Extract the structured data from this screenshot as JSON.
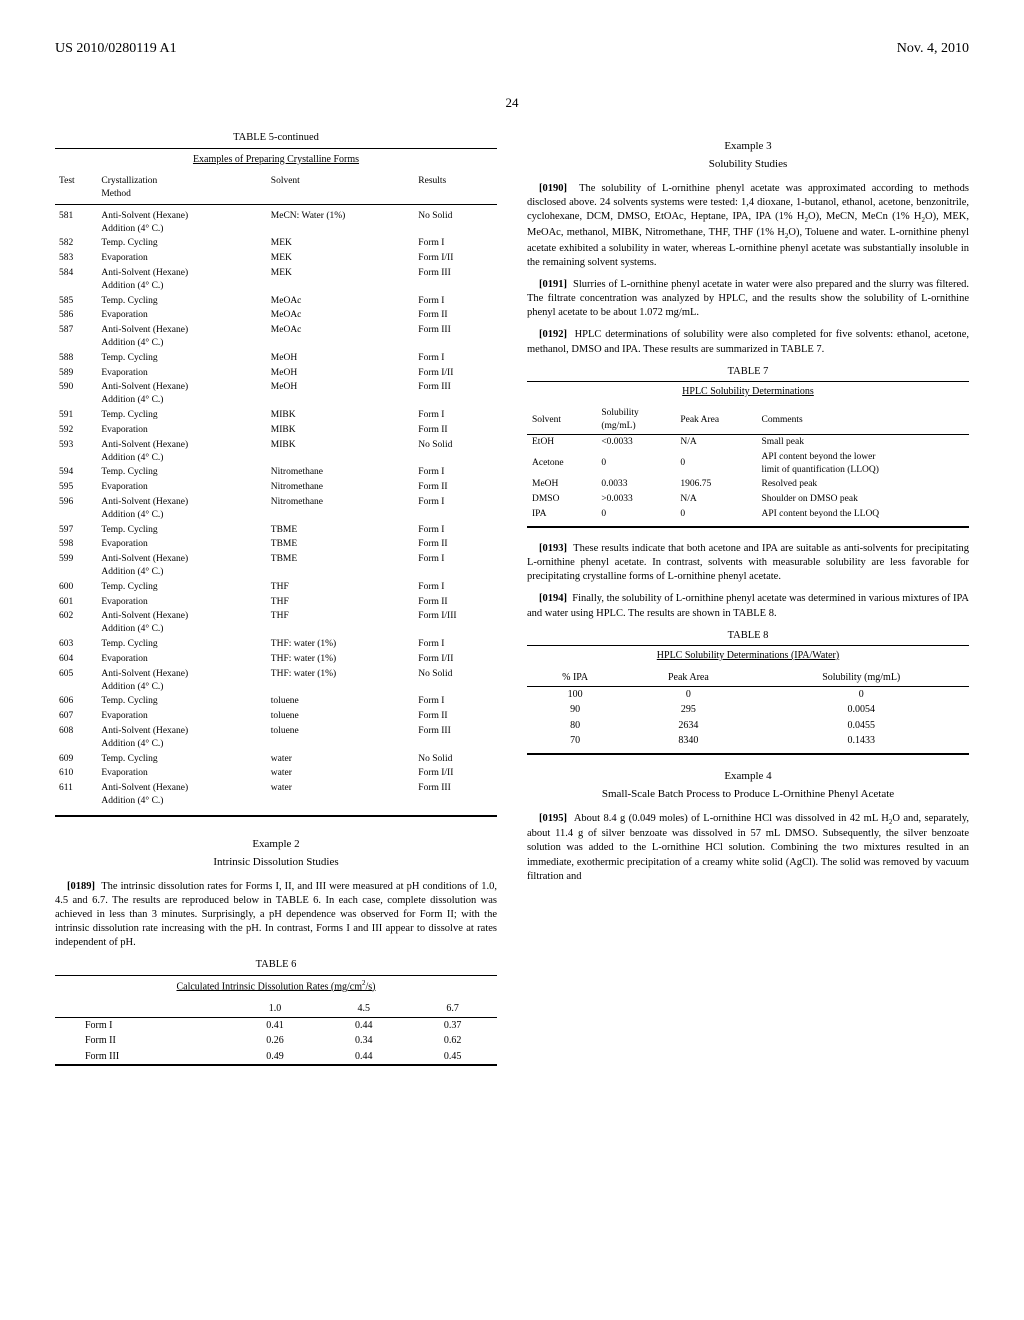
{
  "header": {
    "pubnum": "US 2010/0280119 A1",
    "date": "Nov. 4, 2010"
  },
  "page_number": "24",
  "table5": {
    "title": "TABLE 5-continued",
    "subtitle": "Examples of Preparing Crystalline Forms",
    "headers": [
      "Test",
      "Crystallization\nMethod",
      "Solvent",
      "Results"
    ],
    "rows": [
      [
        "581",
        "Anti-Solvent (Hexane)\nAddition (4° C.)",
        "MeCN: Water (1%)",
        "No Solid"
      ],
      [
        "582",
        "Temp. Cycling",
        "MEK",
        "Form I"
      ],
      [
        "583",
        "Evaporation",
        "MEK",
        "Form I/II"
      ],
      [
        "584",
        "Anti-Solvent (Hexane)\nAddition (4° C.)",
        "MEK",
        "Form III"
      ],
      [
        "585",
        "Temp. Cycling",
        "MeOAc",
        "Form I"
      ],
      [
        "586",
        "Evaporation",
        "MeOAc",
        "Form II"
      ],
      [
        "587",
        "Anti-Solvent (Hexane)\nAddition (4° C.)",
        "MeOAc",
        "Form III"
      ],
      [
        "588",
        "Temp. Cycling",
        "MeOH",
        "Form I"
      ],
      [
        "589",
        "Evaporation",
        "MeOH",
        "Form I/II"
      ],
      [
        "590",
        "Anti-Solvent (Hexane)\nAddition (4° C.)",
        "MeOH",
        "Form III"
      ],
      [
        "591",
        "Temp. Cycling",
        "MIBK",
        "Form I"
      ],
      [
        "592",
        "Evaporation",
        "MIBK",
        "Form II"
      ],
      [
        "593",
        "Anti-Solvent (Hexane)\nAddition (4° C.)",
        "MIBK",
        "No Solid"
      ],
      [
        "594",
        "Temp. Cycling",
        "Nitromethane",
        "Form I"
      ],
      [
        "595",
        "Evaporation",
        "Nitromethane",
        "Form II"
      ],
      [
        "596",
        "Anti-Solvent (Hexane)\nAddition (4° C.)",
        "Nitromethane",
        "Form I"
      ],
      [
        "597",
        "Temp. Cycling",
        "TBME",
        "Form I"
      ],
      [
        "598",
        "Evaporation",
        "TBME",
        "Form II"
      ],
      [
        "599",
        "Anti-Solvent (Hexane)\nAddition (4° C.)",
        "TBME",
        "Form I"
      ],
      [
        "600",
        "Temp. Cycling",
        "THF",
        "Form I"
      ],
      [
        "601",
        "Evaporation",
        "THF",
        "Form II"
      ],
      [
        "602",
        "Anti-Solvent (Hexane)\nAddition (4° C.)",
        "THF",
        "Form I/III"
      ],
      [
        "603",
        "Temp. Cycling",
        "THF: water (1%)",
        "Form I"
      ],
      [
        "604",
        "Evaporation",
        "THF: water (1%)",
        "Form I/II"
      ],
      [
        "605",
        "Anti-Solvent (Hexane)\nAddition (4° C.)",
        "THF: water (1%)",
        "No Solid"
      ],
      [
        "606",
        "Temp. Cycling",
        "toluene",
        "Form I"
      ],
      [
        "607",
        "Evaporation",
        "toluene",
        "Form II"
      ],
      [
        "608",
        "Anti-Solvent (Hexane)\nAddition (4° C.)",
        "toluene",
        "Form III"
      ],
      [
        "609",
        "Temp. Cycling",
        "water",
        "No Solid"
      ],
      [
        "610",
        "Evaporation",
        "water",
        "Form I/II"
      ],
      [
        "611",
        "Anti-Solvent (Hexane)\nAddition (4° C.)",
        "water",
        "Form III"
      ]
    ]
  },
  "example2": {
    "label": "Example 2",
    "title": "Intrinsic Dissolution Studies",
    "para_num": "[0189]",
    "para": "The intrinsic dissolution rates for Forms I, II, and III were measured at pH conditions of 1.0, 4.5 and 6.7. The results are reproduced below in TABLE 6. In each case, complete dissolution was achieved in less than 3 minutes. Surprisingly, a pH dependence was observed for Form II; with the intrinsic dissolution rate increasing with the pH. In contrast, Forms I and III appear to dissolve at rates independent of pH."
  },
  "table6": {
    "title": "TABLE 6",
    "subtitle_html": "Calculated Intrinsic Dissolution Rates (mg/cm<sup>2</sup>/s)",
    "headers": [
      "",
      "1.0",
      "4.5",
      "6.7"
    ],
    "rows": [
      [
        "Form I",
        "0.41",
        "0.44",
        "0.37"
      ],
      [
        "Form II",
        "0.26",
        "0.34",
        "0.62"
      ],
      [
        "Form III",
        "0.49",
        "0.44",
        "0.45"
      ]
    ]
  },
  "example3": {
    "label": "Example 3",
    "title": "Solubility Studies",
    "p190_num": "[0190]",
    "p190_html": "The solubility of L-ornithine phenyl acetate was approximated according to methods disclosed above. 24 solvents systems were tested: 1,4 dioxane, 1-butanol, ethanol, acetone, benzonitrile, cyclohexane, DCM, DMSO, EtOAc, Heptane, IPA, IPA (1% H<sub>2</sub>O), MeCN, MeCn (1% H<sub>2</sub>O), MEK, MeOAc, methanol, MIBK, Nitromethane, THF, THF (1% H<sub>2</sub>O), Toluene and water. L-ornithine phenyl acetate exhibited a solubility in water, whereas L-ornithine phenyl acetate was substantially insoluble in the remaining solvent systems.",
    "p191_num": "[0191]",
    "p191": "Slurries of L-ornithine phenyl acetate in water were also prepared and the slurry was filtered. The filtrate concentration was analyzed by HPLC, and the results show the solubility of L-ornithine phenyl acetate to be about 1.072 mg/mL.",
    "p192_num": "[0192]",
    "p192": "HPLC determinations of solubility were also completed for five solvents: ethanol, acetone, methanol, DMSO and IPA. These results are summarized in TABLE 7."
  },
  "table7": {
    "title": "TABLE 7",
    "subtitle": "HPLC Solubility Determinations",
    "headers": [
      "Solvent",
      "Solubility\n(mg/mL)",
      "Peak Area",
      "Comments"
    ],
    "rows": [
      [
        "EtOH",
        "<0.0033",
        "N/A",
        "Small peak"
      ],
      [
        "Acetone",
        "0",
        "0",
        "API content beyond the lower\nlimit of quantification (LLOQ)"
      ],
      [
        "MeOH",
        "0.0033",
        "1906.75",
        "Resolved peak"
      ],
      [
        "DMSO",
        ">0.0033",
        "N/A",
        "Shoulder on DMSO peak"
      ],
      [
        "IPA",
        "0",
        "0",
        "API content beyond the LLOQ"
      ]
    ]
  },
  "p193_num": "[0193]",
  "p193": "These results indicate that both acetone and IPA are suitable as anti-solvents for precipitating L-ornithine phenyl acetate. In contrast, solvents with measurable solubility are less favorable for precipitating crystalline forms of L-ornithine phenyl acetate.",
  "p194_num": "[0194]",
  "p194": "Finally, the solubility of L-ornithine phenyl acetate was determined in various mixtures of IPA and water using HPLC. The results are shown in TABLE 8.",
  "table8": {
    "title": "TABLE 8",
    "subtitle": "HPLC Solubility Determinations (IPA/Water)",
    "headers": [
      "% IPA",
      "Peak Area",
      "Solubility (mg/mL)"
    ],
    "rows": [
      [
        "100",
        "0",
        "0"
      ],
      [
        "90",
        "295",
        "0.0054"
      ],
      [
        "80",
        "2634",
        "0.0455"
      ],
      [
        "70",
        "8340",
        "0.1433"
      ]
    ]
  },
  "example4": {
    "label": "Example 4",
    "title": "Small-Scale Batch Process to Produce L-Ornithine Phenyl Acetate",
    "p195_num": "[0195]",
    "p195_html": "About 8.4 g (0.049 moles) of L-ornithine HCl was dissolved in 42 mL H<sub>2</sub>O and, separately, about 11.4 g of silver benzoate was dissolved in 57 mL DMSO. Subsequently, the silver benzoate solution was added to the L-ornithine HCl solution. Combining the two mixtures resulted in an immediate, exothermic precipitation of a creamy white solid (AgCl). The solid was removed by vacuum filtration and"
  }
}
